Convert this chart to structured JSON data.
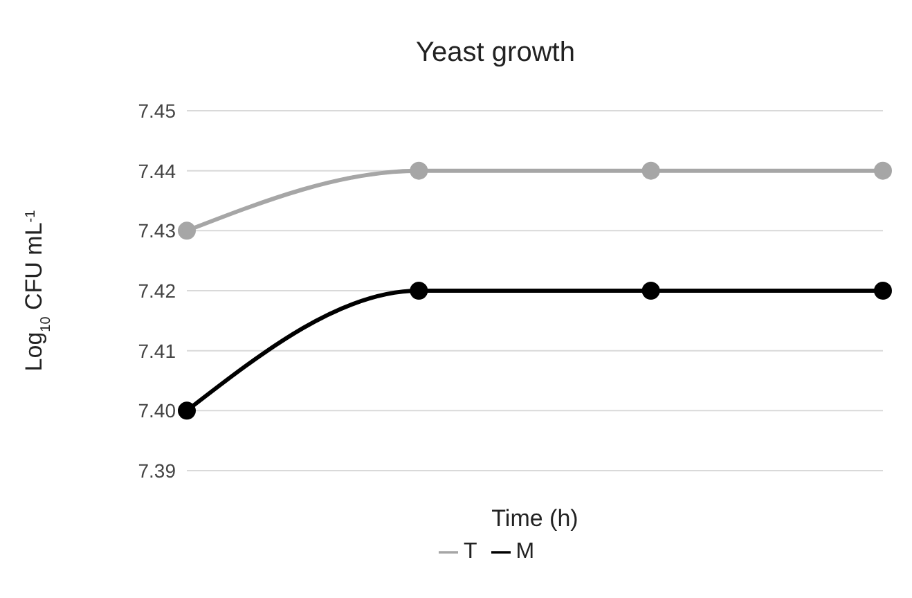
{
  "chart_data": {
    "type": "line",
    "title": "Yeast growth",
    "xlabel": "Time (h)",
    "ylabel": "Log$_{10}$ CFU mL$^{-1}$",
    "categories": [
      null,
      null,
      null,
      null
    ],
    "series": [
      {
        "name": "T",
        "color": "#a6a6a6",
        "values": [
          7.43,
          7.44,
          7.44,
          7.44
        ]
      },
      {
        "name": "M",
        "color": "#000000",
        "values": [
          7.4,
          7.42,
          7.42,
          7.42
        ]
      }
    ],
    "ylim": [
      7.39,
      7.45
    ],
    "yticks": [
      7.39,
      {
        "value": 7.4,
        "label": "7.40"
      },
      7.41,
      7.42,
      7.43,
      7.44,
      7.45
    ],
    "grid": "y",
    "legend": "bottom",
    "marker": "circle",
    "line_style": "solid"
  }
}
